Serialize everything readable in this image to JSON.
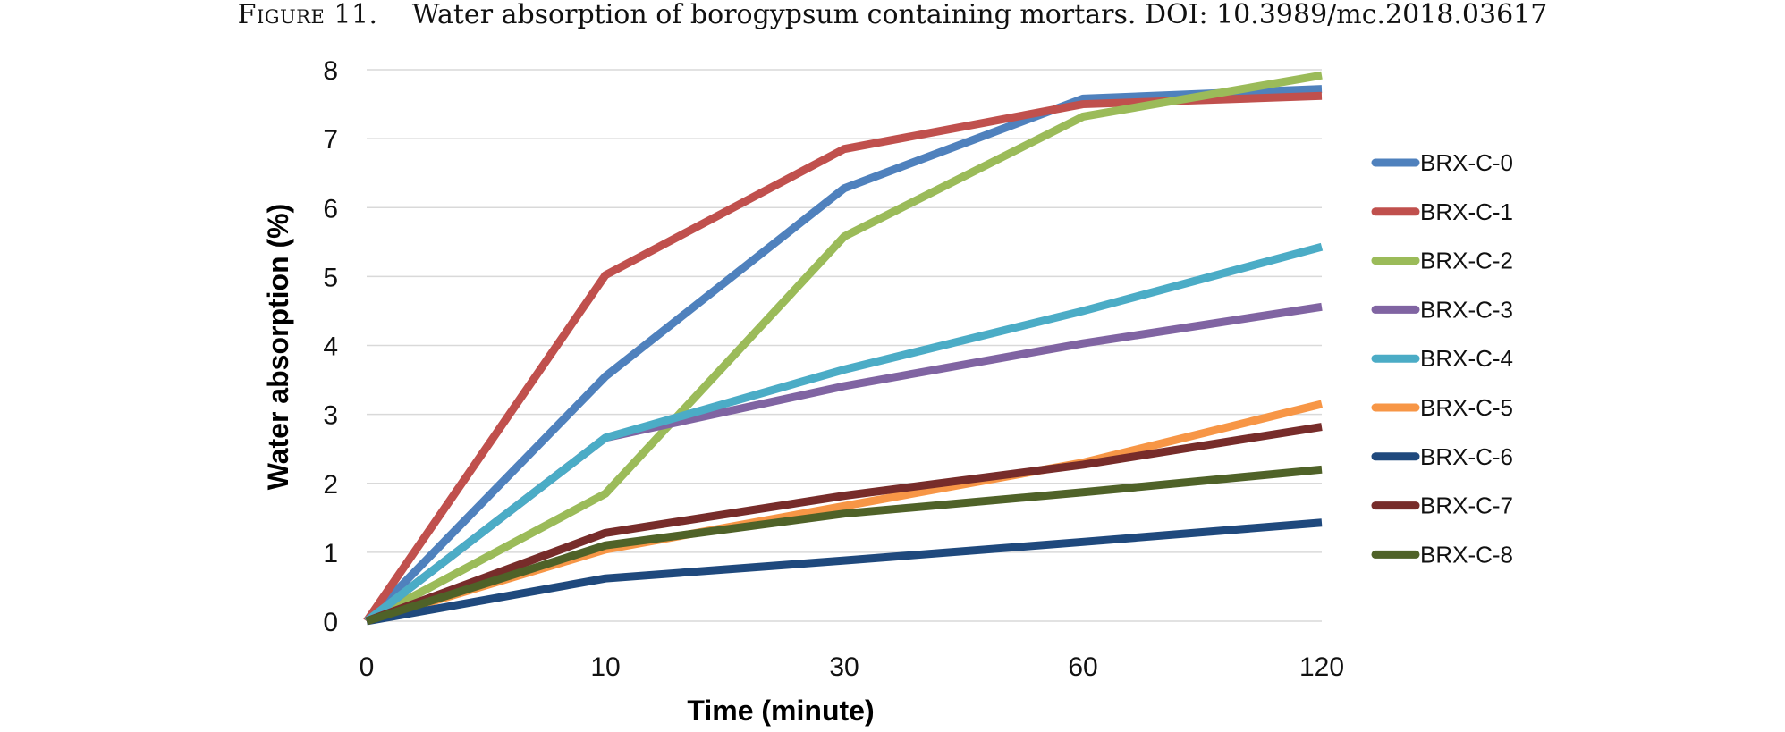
{
  "caption": {
    "prefix": "Figure 11.",
    "text": "Water absorption of borogypsum containing mortars. DOI: 10.3989/mc.2018.03617"
  },
  "chart_data": {
    "type": "line",
    "categories": [
      "0",
      "10",
      "30",
      "60",
      "120"
    ],
    "xlabel": "Time (minute)",
    "ylabel": "Water absorption (%)",
    "ylim": [
      0,
      8
    ],
    "yticks": [
      0,
      1,
      2,
      3,
      4,
      5,
      6,
      7,
      8
    ],
    "grid": "horizontal",
    "legend_position": "right",
    "series": [
      {
        "name": "BRX-C-0",
        "color": "#4f81bd",
        "values": [
          0,
          3.55,
          6.28,
          7.58,
          7.72
        ]
      },
      {
        "name": "BRX-C-1",
        "color": "#c0504d",
        "values": [
          0,
          5.02,
          6.85,
          7.5,
          7.62
        ]
      },
      {
        "name": "BRX-C-2",
        "color": "#9bbb59",
        "values": [
          0,
          1.85,
          5.58,
          7.32,
          7.92
        ]
      },
      {
        "name": "BRX-C-3",
        "color": "#8064a2",
        "values": [
          0,
          2.66,
          3.41,
          4.03,
          4.56
        ]
      },
      {
        "name": "BRX-C-4",
        "color": "#4bacc6",
        "values": [
          0,
          2.66,
          3.65,
          4.5,
          5.43
        ]
      },
      {
        "name": "BRX-C-5",
        "color": "#f79646",
        "values": [
          0,
          1.04,
          1.67,
          2.3,
          3.15
        ]
      },
      {
        "name": "BRX-C-6",
        "color": "#1f497d",
        "values": [
          0,
          0.62,
          0.88,
          1.15,
          1.43
        ]
      },
      {
        "name": "BRX-C-7",
        "color": "#772c2a",
        "values": [
          0,
          1.28,
          1.82,
          2.27,
          2.82
        ]
      },
      {
        "name": "BRX-C-8",
        "color": "#4f6228",
        "values": [
          0,
          1.1,
          1.56,
          1.87,
          2.2
        ]
      }
    ]
  }
}
